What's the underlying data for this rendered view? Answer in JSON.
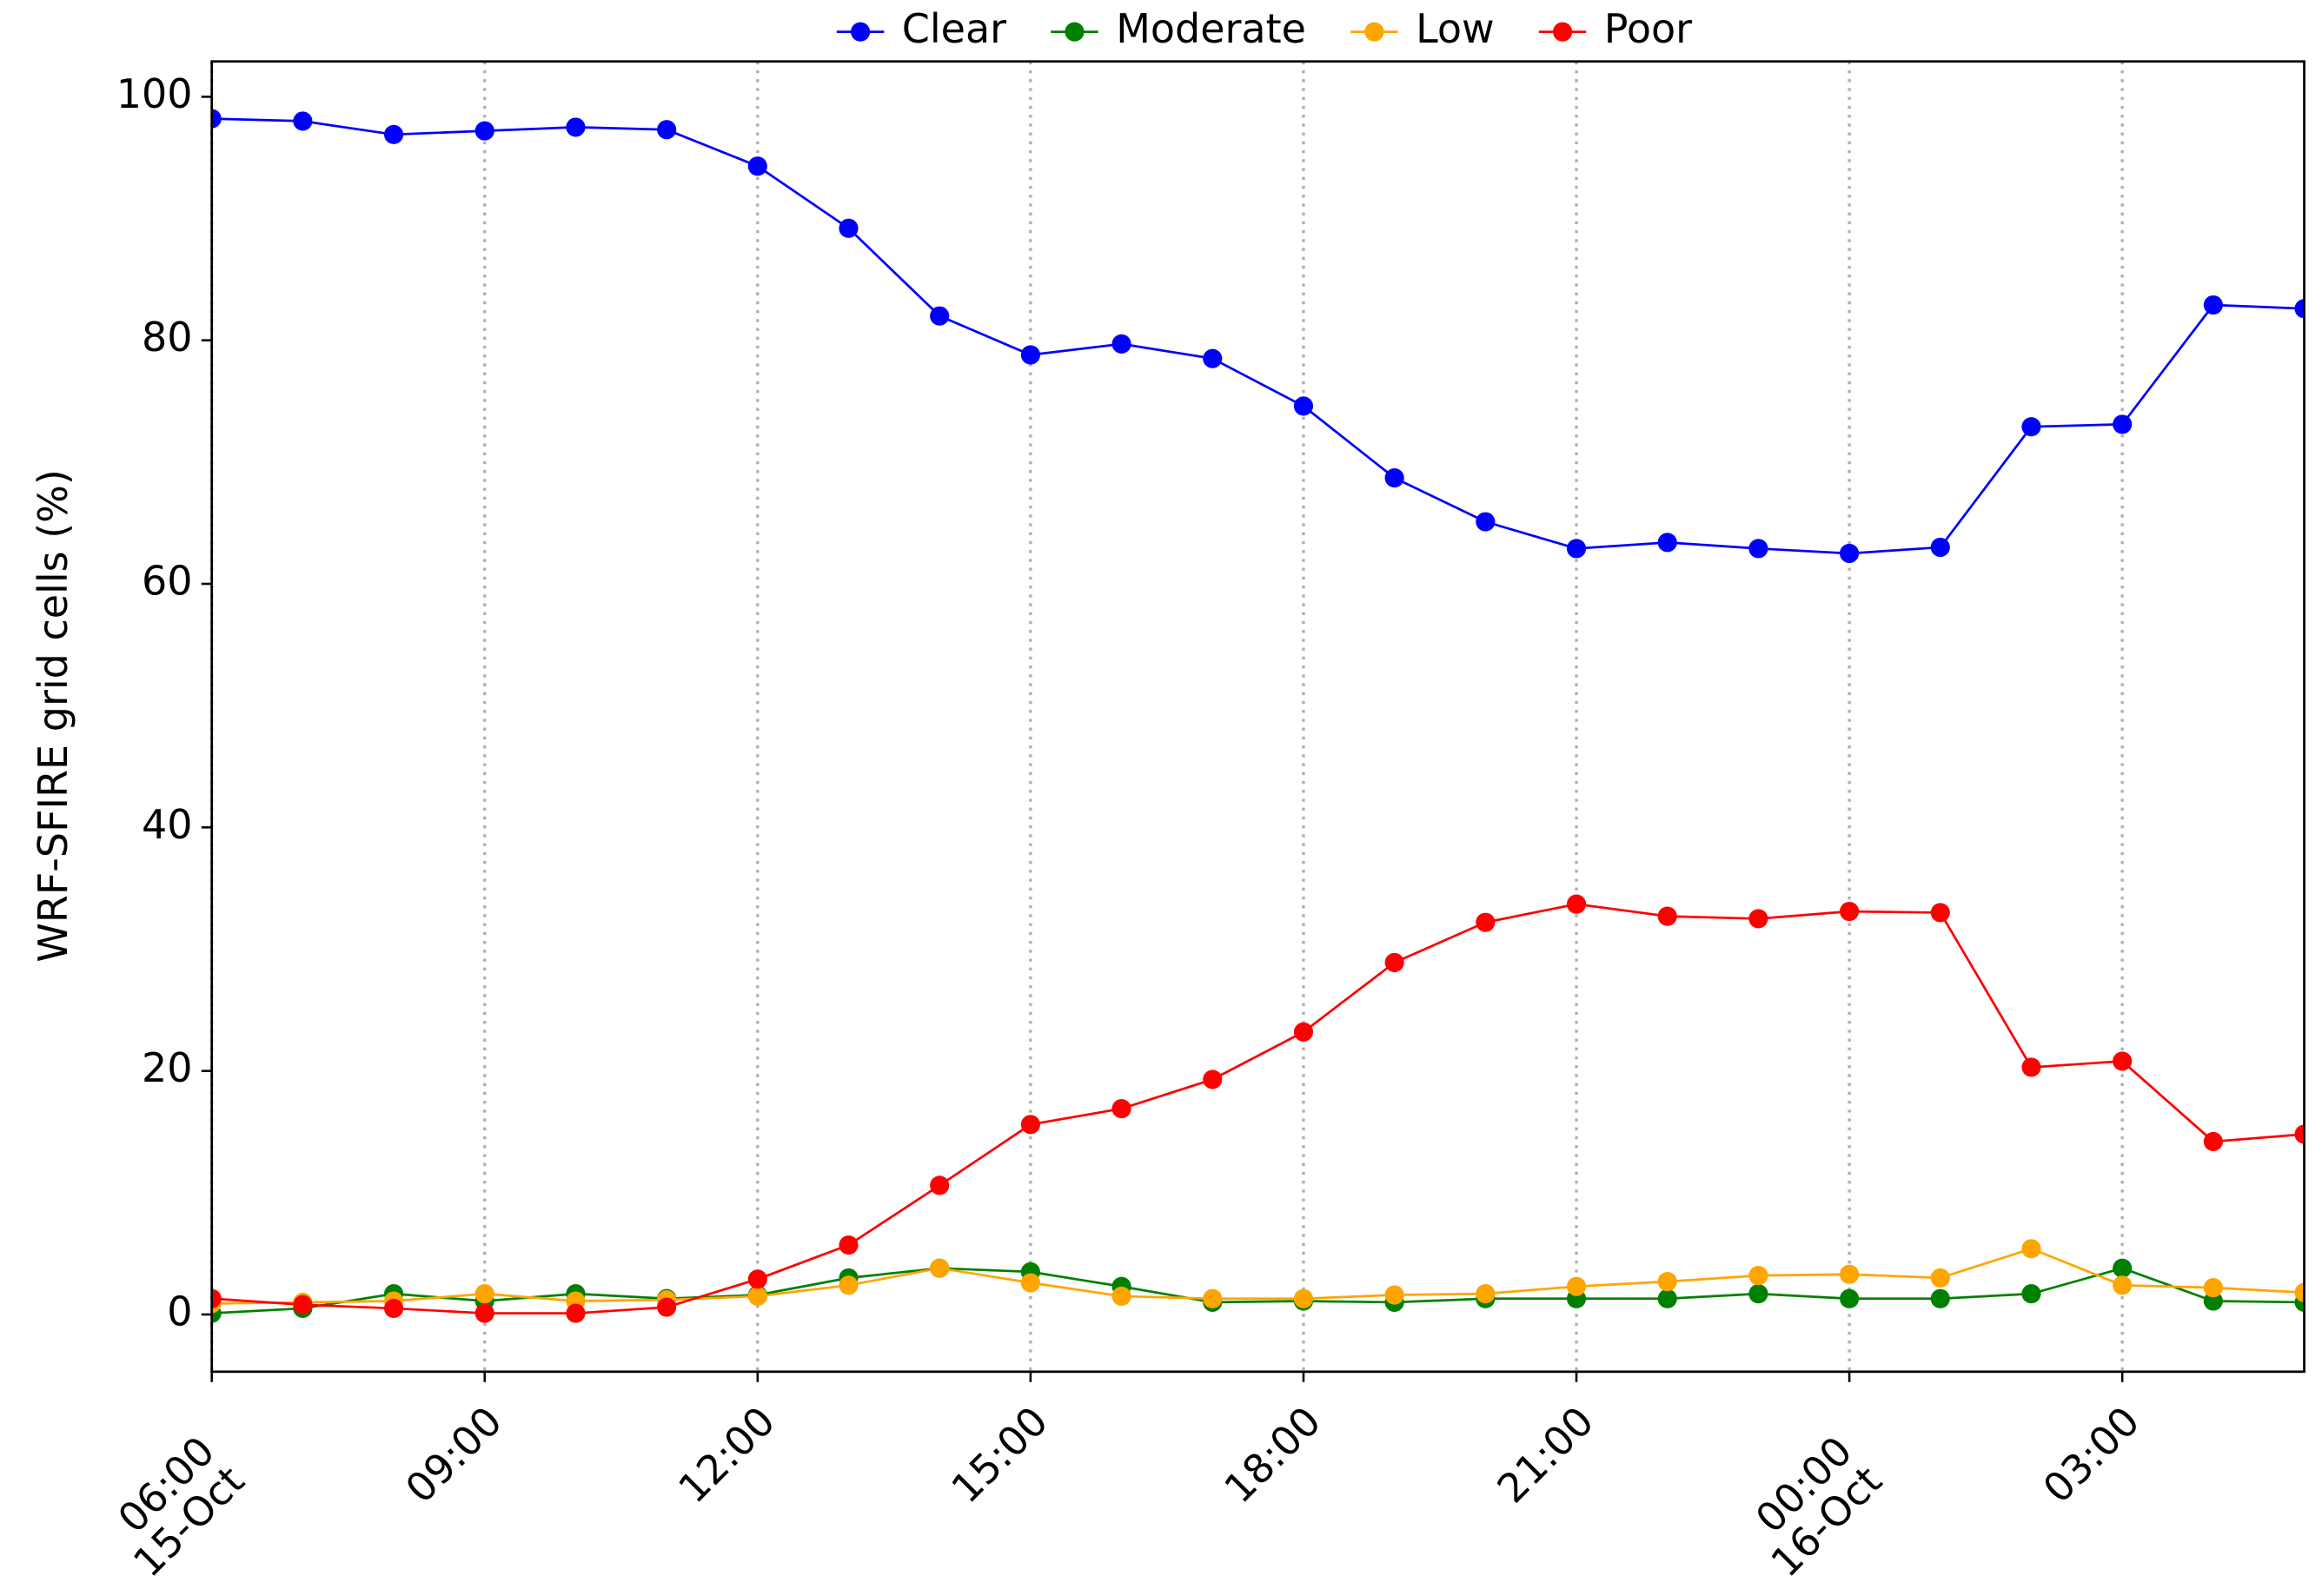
{
  "chart_data": {
    "type": "line",
    "ylabel": "WRF-SFIRE grid cells (%)",
    "categories": [
      "06:00\n15-Oct",
      null,
      null,
      "09:00",
      null,
      null,
      "12:00",
      null,
      null,
      "15:00",
      null,
      null,
      "18:00",
      null,
      null,
      "21:00",
      null,
      null,
      "00:00\n16-Oct",
      null,
      null,
      "03:00",
      null,
      null
    ],
    "series": [
      {
        "name": "Clear",
        "color": "#0000ff",
        "values": [
          98.2,
          98.0,
          96.9,
          97.2,
          97.5,
          97.3,
          94.3,
          89.2,
          82.0,
          78.8,
          79.7,
          78.5,
          74.6,
          68.7,
          65.1,
          62.9,
          63.4,
          62.9,
          62.5,
          63.0,
          72.9,
          73.1,
          82.9,
          82.6
        ]
      },
      {
        "name": "Moderate",
        "color": "#008000",
        "values": [
          0.1,
          0.5,
          1.7,
          1.1,
          1.7,
          1.3,
          1.6,
          3.0,
          3.8,
          3.5,
          2.3,
          1.0,
          1.1,
          1.0,
          1.3,
          1.3,
          1.3,
          1.7,
          1.3,
          1.3,
          1.7,
          3.8,
          1.1,
          1.0
        ]
      },
      {
        "name": "Low",
        "color": "#ffa500",
        "values": [
          0.9,
          1.0,
          1.1,
          1.7,
          1.1,
          1.2,
          1.5,
          2.4,
          3.8,
          2.6,
          1.5,
          1.3,
          1.3,
          1.6,
          1.7,
          2.3,
          2.7,
          3.2,
          3.3,
          3.0,
          5.4,
          2.4,
          2.2,
          1.8
        ]
      },
      {
        "name": "Poor",
        "color": "#ff0000",
        "values": [
          1.3,
          0.8,
          0.5,
          0.1,
          0.1,
          0.6,
          2.9,
          5.7,
          10.6,
          15.6,
          16.9,
          19.3,
          23.2,
          28.9,
          32.2,
          33.7,
          32.7,
          32.5,
          33.1,
          33.0,
          20.3,
          20.8,
          14.2,
          14.8
        ]
      }
    ],
    "ylim": [
      -4.7,
      102.9
    ],
    "yticks": [
      0,
      20,
      40,
      60,
      80,
      100
    ],
    "xgrid": true,
    "legend": "top"
  }
}
